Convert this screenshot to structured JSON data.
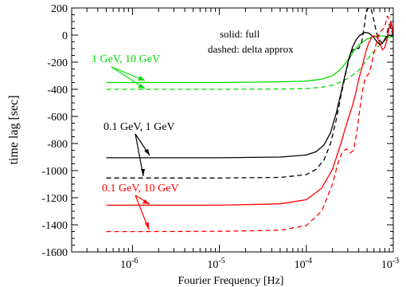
{
  "chart_data": {
    "type": "line",
    "xlabel": "Fourier Frequency [Hz]",
    "ylabel": "time lag [sec]",
    "xscale": "log",
    "xlim": [
      2e-07,
      0.001
    ],
    "ylim": [
      -1600,
      200
    ],
    "xticks": [
      {
        "value": 1e-06,
        "base": "10",
        "exp": "-6"
      },
      {
        "value": 1e-05,
        "base": "10",
        "exp": "-5"
      },
      {
        "value": 0.0001,
        "base": "10",
        "exp": "-4"
      },
      {
        "value": 0.001,
        "base": "10",
        "exp": "-3"
      }
    ],
    "yticks": [
      200,
      0,
      -200,
      -400,
      -600,
      -800,
      -1000,
      -1200,
      -1400,
      -1600
    ],
    "yticklabels": [
      "200",
      "0",
      "-200",
      "-400",
      "-600",
      "-800",
      "-1000",
      "-1200",
      "-1400",
      "-1600"
    ],
    "grid": false,
    "legend_lines": [
      "solid:  full",
      "dashed:  delta approx"
    ],
    "annotations": [
      {
        "text": "1 GeV, 10 GeV",
        "color": "#00dd00"
      },
      {
        "text": "0.1 GeV, 1 GeV",
        "color": "#000000"
      },
      {
        "text": "0.1 GeV, 10 GeV",
        "color": "#ff0000"
      }
    ],
    "series": [
      {
        "label": "1 GeV, 10 GeV (full)",
        "color": "#00dd00",
        "dash": false,
        "x": [
          5e-07,
          1e-06,
          1e-05,
          5e-05,
          0.0001,
          0.00015,
          0.0002,
          0.00025,
          0.0003,
          0.00035,
          0.0004,
          0.00045,
          0.0005,
          0.0006,
          0.0007,
          0.0008,
          0.0009,
          0.001
        ],
        "y": [
          -350,
          -350,
          -350,
          -345,
          -340,
          -325,
          -300,
          -250,
          -185,
          -120,
          -75,
          -50,
          -30,
          -10,
          -5,
          -8,
          -15,
          -10
        ]
      },
      {
        "label": "1 GeV, 10 GeV (delta approx)",
        "color": "#00dd00",
        "dash": true,
        "x": [
          5e-07,
          1e-06,
          1e-05,
          5e-05,
          0.0001,
          0.00015,
          0.0002,
          0.00025,
          0.0003,
          0.00035,
          0.0004,
          0.00045,
          0.0005,
          0.0006,
          0.0007,
          0.0008,
          0.0009,
          0.001
        ],
        "y": [
          -400,
          -400,
          -400,
          -398,
          -395,
          -385,
          -370,
          -345,
          -320,
          -290,
          -260,
          -220,
          -180,
          -120,
          -70,
          -40,
          -15,
          -10
        ]
      },
      {
        "label": "0.1 GeV, 1 GeV (full)",
        "color": "#000000",
        "dash": false,
        "x": [
          5e-07,
          1e-06,
          1e-05,
          5e-05,
          0.0001,
          0.00013,
          0.00016,
          0.00019,
          0.00022,
          0.00025,
          0.00028,
          0.00031,
          0.00034,
          0.00037,
          0.0004,
          0.00044,
          0.00048,
          0.00052,
          0.00056,
          0.0006,
          0.00065,
          0.0007,
          0.00075,
          0.0008,
          0.00085,
          0.0009,
          0.00095,
          0.001
        ],
        "y": [
          -905,
          -905,
          -905,
          -900,
          -885,
          -860,
          -810,
          -720,
          -580,
          -430,
          -290,
          -170,
          -90,
          -40,
          -10,
          10,
          20,
          15,
          0,
          -20,
          -50,
          -70,
          -60,
          -30,
          -10,
          0,
          -5,
          -5
        ]
      },
      {
        "label": "0.1 GeV, 1 GeV (delta approx)",
        "color": "#000000",
        "dash": true,
        "x": [
          5e-07,
          1e-06,
          1e-05,
          5e-05,
          0.0001,
          0.00013,
          0.00016,
          0.00019,
          0.00022,
          0.00025,
          0.00028,
          0.00031,
          0.00034,
          0.00037,
          0.0004,
          0.00043,
          0.00046,
          0.00049,
          0.00052,
          0.00055,
          0.00058,
          0.00061,
          0.00064,
          0.0007,
          0.00075,
          0.0008,
          0.00085,
          0.0009,
          0.00095,
          0.001
        ],
        "y": [
          -1055,
          -1055,
          -1055,
          -1050,
          -1030,
          -990,
          -920,
          -800,
          -630,
          -450,
          -300,
          -180,
          -110,
          -95,
          -100,
          -60,
          50,
          180,
          210,
          200,
          150,
          80,
          20,
          -40,
          -60,
          -40,
          20,
          80,
          40,
          -10
        ]
      },
      {
        "label": "0.1 GeV, 10 GeV (full)",
        "color": "#ff0000",
        "dash": false,
        "x": [
          5e-07,
          1e-06,
          1e-05,
          5e-05,
          0.0001,
          0.00015,
          0.0002,
          0.00025,
          0.00028,
          0.00031,
          0.00034,
          0.00037,
          0.0004,
          0.00044,
          0.00048,
          0.00052,
          0.00056,
          0.0006,
          0.00065,
          0.0007,
          0.00075,
          0.0008,
          0.00085,
          0.0009,
          0.00095,
          0.001
        ],
        "y": [
          -1255,
          -1255,
          -1255,
          -1245,
          -1215,
          -1130,
          -990,
          -800,
          -690,
          -600,
          -520,
          -430,
          -330,
          -230,
          -130,
          -60,
          -20,
          -5,
          -15,
          -60,
          -110,
          -90,
          -30,
          60,
          90,
          0
        ]
      },
      {
        "label": "0.1 GeV, 10 GeV (delta approx)",
        "color": "#ff0000",
        "dash": true,
        "x": [
          5e-07,
          1e-06,
          1e-05,
          5e-05,
          0.0001,
          0.00015,
          0.0002,
          0.00023,
          0.00026,
          0.00029,
          0.00032,
          0.00035,
          0.00038,
          0.00041,
          0.00044,
          0.00047,
          0.0005,
          0.00053,
          0.00056,
          0.0006,
          0.00065,
          0.0007,
          0.00075,
          0.0008,
          0.00085,
          0.0009,
          0.00095,
          0.001
        ],
        "y": [
          -1450,
          -1450,
          -1448,
          -1440,
          -1405,
          -1300,
          -1100,
          -950,
          -860,
          -840,
          -870,
          -850,
          -720,
          -560,
          -420,
          -330,
          -300,
          -280,
          -220,
          -130,
          -40,
          20,
          40,
          60,
          140,
          120,
          60,
          0
        ]
      }
    ]
  }
}
